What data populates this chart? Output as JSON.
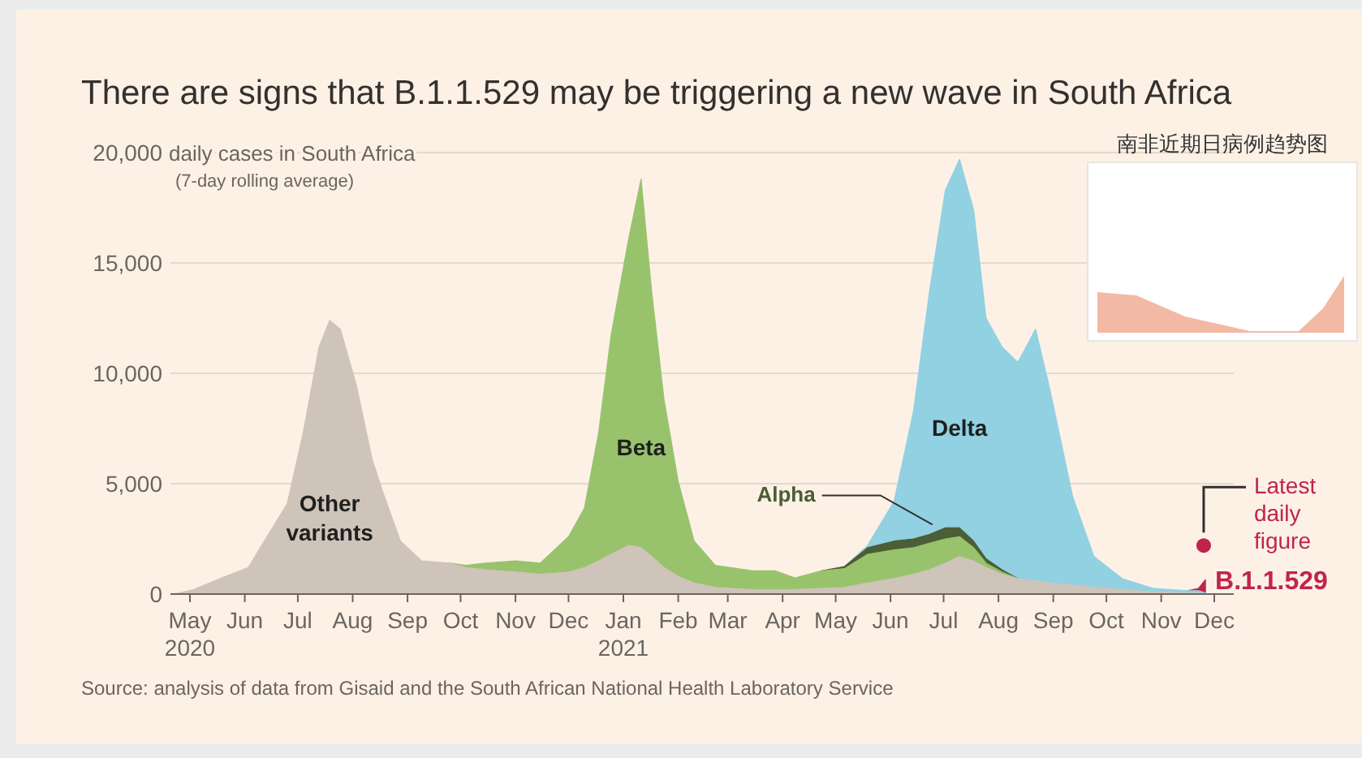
{
  "chart_data": {
    "type": "area",
    "stacked": true,
    "title": "There are signs that B.1.1.529 may be triggering a new wave in South Africa",
    "ylabel": "daily cases in South Africa\n(7-day rolling average)",
    "x": [
      "2020-04-22",
      "2020-05-03",
      "2020-05-21",
      "2020-06-03",
      "2020-06-12",
      "2020-06-25",
      "2020-07-04",
      "2020-07-13",
      "2020-07-19",
      "2020-07-25",
      "2020-08-03",
      "2020-08-12",
      "2020-08-19",
      "2020-08-28",
      "2020-09-09",
      "2020-09-25",
      "2020-10-04",
      "2020-10-15",
      "2020-11-01",
      "2020-11-15",
      "2020-12-01",
      "2020-12-10",
      "2020-12-18",
      "2020-12-25",
      "2021-01-04",
      "2021-01-11",
      "2021-01-17",
      "2021-01-24",
      "2021-02-01",
      "2021-02-10",
      "2021-02-22",
      "2021-03-15",
      "2021-03-28",
      "2021-04-08",
      "2021-04-23",
      "2021-05-06",
      "2021-05-19",
      "2021-06-03",
      "2021-06-14",
      "2021-06-23",
      "2021-07-02",
      "2021-07-10",
      "2021-07-18",
      "2021-07-25",
      "2021-08-03",
      "2021-08-12",
      "2021-08-22",
      "2021-08-30",
      "2021-09-12",
      "2021-09-24",
      "2021-10-10",
      "2021-10-28",
      "2021-11-16",
      "2021-11-22",
      "2021-11-26"
    ],
    "series": [
      {
        "name": "Other variants",
        "color": "#cfc4b9",
        "values": [
          0,
          200,
          800,
          1200,
          2400,
          4100,
          7300,
          11200,
          12400,
          12000,
          9500,
          6100,
          4400,
          2400,
          1500,
          1400,
          1200,
          1100,
          1000,
          900,
          1000,
          1200,
          1500,
          1800,
          2200,
          2100,
          1700,
          1200,
          800,
          500,
          300,
          200,
          200,
          200,
          250,
          300,
          500,
          700,
          900,
          1100,
          1400,
          1700,
          1500,
          1200,
          900,
          700,
          600,
          500,
          400,
          300,
          200,
          100,
          50,
          50,
          0
        ]
      },
      {
        "name": "Beta",
        "color": "#98c36c",
        "values": [
          null,
          null,
          null,
          null,
          null,
          null,
          null,
          null,
          null,
          null,
          null,
          null,
          null,
          null,
          null,
          0,
          100,
          300,
          500,
          500,
          1600,
          2700,
          5800,
          9900,
          13900,
          16700,
          12000,
          7600,
          4300,
          1900,
          1000,
          850,
          850,
          530,
          800,
          850,
          1300,
          1300,
          1200,
          1200,
          1100,
          900,
          600,
          200,
          100,
          0,
          null,
          null,
          null,
          null,
          null,
          null,
          null,
          null,
          null
        ]
      },
      {
        "name": "Alpha",
        "color": "#4b5e36",
        "values": [
          null,
          null,
          null,
          null,
          null,
          null,
          null,
          null,
          null,
          null,
          null,
          null,
          null,
          null,
          null,
          null,
          null,
          null,
          null,
          null,
          null,
          null,
          null,
          null,
          null,
          null,
          null,
          null,
          null,
          null,
          null,
          null,
          null,
          null,
          0,
          100,
          300,
          400,
          400,
          400,
          500,
          400,
          300,
          200,
          100,
          0,
          null,
          null,
          null,
          null,
          null,
          null,
          null,
          null,
          null
        ]
      },
      {
        "name": "Delta",
        "color": "#91d1e2",
        "values": [
          null,
          null,
          null,
          null,
          null,
          null,
          null,
          null,
          null,
          null,
          null,
          null,
          null,
          null,
          null,
          null,
          null,
          null,
          null,
          null,
          null,
          null,
          null,
          null,
          null,
          null,
          null,
          null,
          null,
          null,
          null,
          null,
          null,
          null,
          null,
          0,
          100,
          1800,
          5800,
          11000,
          15300,
          16700,
          15000,
          10900,
          10100,
          9800,
          11400,
          8800,
          4000,
          1400,
          500,
          150,
          100,
          100,
          50
        ]
      },
      {
        "name": "B.1.1.529",
        "color": "#c0244c",
        "values": [
          null,
          null,
          null,
          null,
          null,
          null,
          null,
          null,
          null,
          null,
          null,
          null,
          null,
          null,
          null,
          null,
          null,
          null,
          null,
          null,
          null,
          null,
          null,
          null,
          null,
          null,
          null,
          null,
          null,
          null,
          null,
          null,
          null,
          null,
          null,
          null,
          null,
          null,
          null,
          null,
          null,
          null,
          null,
          null,
          null,
          null,
          null,
          null,
          null,
          null,
          null,
          null,
          0,
          100,
          600
        ]
      },
      {
        "name": "Latest daily figure",
        "type": "scatter",
        "color": "#c0244c",
        "x": [
          "2021-11-25"
        ],
        "values": [
          2200
        ]
      }
    ],
    "xlim": [
      "2020-04-20",
      "2021-12-12"
    ],
    "xticks": [
      {
        "value": "2020-05-01",
        "label": "May\n2020"
      },
      {
        "value": "2020-06-01",
        "label": "Jun"
      },
      {
        "value": "2020-07-01",
        "label": "Jul"
      },
      {
        "value": "2020-08-01",
        "label": "Aug"
      },
      {
        "value": "2020-09-01",
        "label": "Sep"
      },
      {
        "value": "2020-10-01",
        "label": "Oct"
      },
      {
        "value": "2020-11-01",
        "label": "Nov"
      },
      {
        "value": "2020-12-01",
        "label": "Dec"
      },
      {
        "value": "2021-01-01",
        "label": "Jan\n2021"
      },
      {
        "value": "2021-02-01",
        "label": "Feb"
      },
      {
        "value": "2021-03-01",
        "label": "Mar"
      },
      {
        "value": "2021-04-01",
        "label": "Apr"
      },
      {
        "value": "2021-05-01",
        "label": "May"
      },
      {
        "value": "2021-06-01",
        "label": "Jun"
      },
      {
        "value": "2021-07-01",
        "label": "Jul"
      },
      {
        "value": "2021-08-01",
        "label": "Aug"
      },
      {
        "value": "2021-09-01",
        "label": "Sep"
      },
      {
        "value": "2021-10-01",
        "label": "Oct"
      },
      {
        "value": "2021-11-01",
        "label": "Nov"
      },
      {
        "value": "2021-12-01",
        "label": "Dec"
      }
    ],
    "ylim": [
      0,
      20000
    ],
    "yticks": [
      0,
      {
        "value": 5000,
        "label": "5,000"
      },
      {
        "value": 10000,
        "label": "10,000"
      },
      {
        "value": 15000,
        "label": "15,000"
      },
      {
        "value": 20000,
        "label": "20,000"
      }
    ],
    "grid": "y",
    "annotations": [
      "Source: analysis of data from Gisaid and the South African National Health Laboratory Service",
      "南非近期日病例趋势图"
    ]
  }
}
